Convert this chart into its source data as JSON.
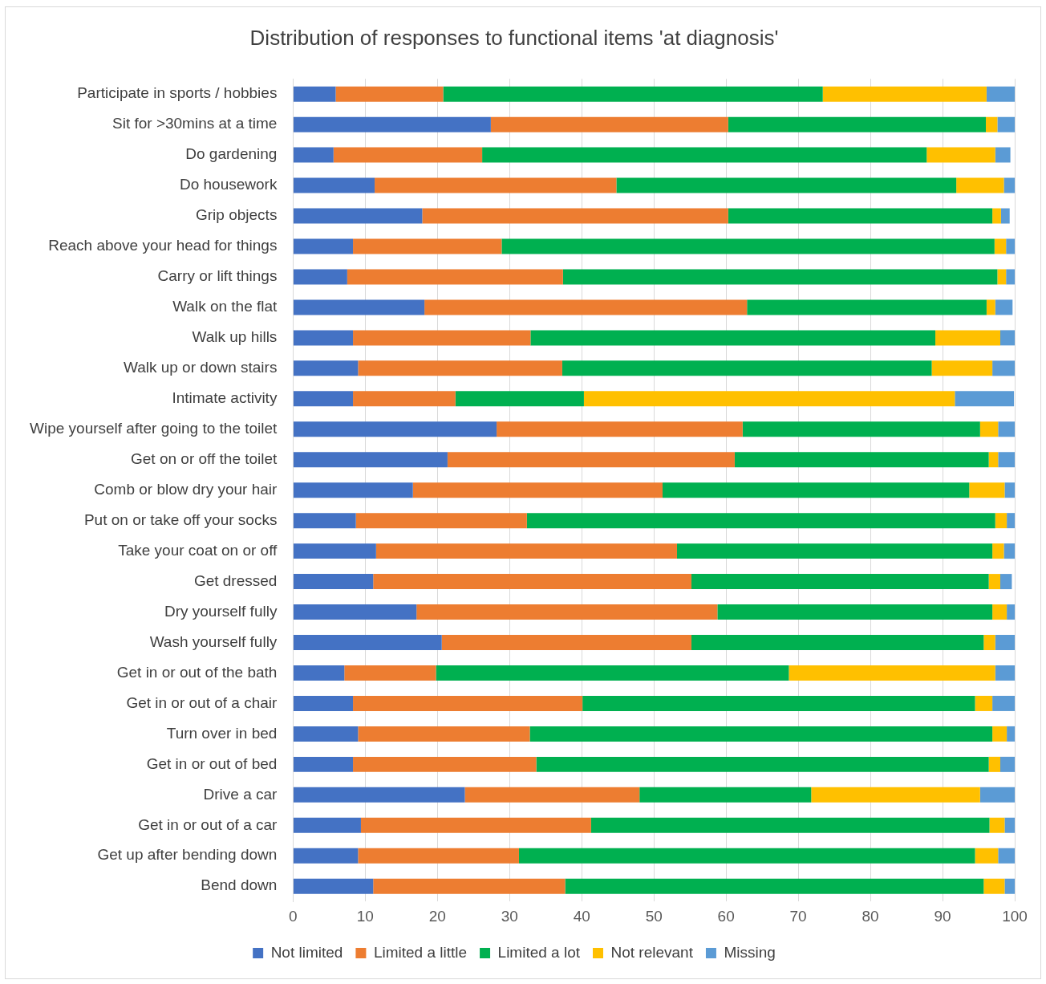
{
  "chart_data": {
    "type": "bar",
    "orientation": "horizontal",
    "stacked": true,
    "title": "Distribution of responses to functional items 'at diagnosis'",
    "categories": [
      "Participate in sports / hobbies",
      "Sit for >30mins at a time",
      "Do gardening",
      "Do housework",
      "Grip objects",
      "Reach above your head for things",
      "Carry or lift things",
      "Walk on the flat",
      "Walk up hills",
      "Walk up or down stairs",
      "Intimate activity",
      "Wipe yourself after going to the toilet",
      "Get on or off the toilet",
      "Comb or blow dry your hair",
      "Put on or take off your socks",
      "Take your coat on or off",
      "Get dressed",
      "Dry yourself fully",
      "Wash yourself fully",
      "Get in or out of the bath",
      "Get in or out of a chair",
      "Turn over in bed",
      "Get in or out of bed",
      "Drive a car",
      "Get in or out of a car",
      "Get up after bending down",
      "Bend down"
    ],
    "series": [
      {
        "name": "Not limited",
        "color": "#4472c4",
        "values": [
          5.9,
          27.4,
          5.6,
          11.3,
          17.9,
          8.3,
          7.5,
          18.2,
          8.3,
          9.0,
          8.3,
          28.2,
          21.4,
          16.6,
          8.7,
          11.5,
          11.1,
          17.1,
          20.6,
          7.1,
          8.3,
          9.0,
          8.3,
          23.8,
          9.4,
          9.0,
          11.1
        ]
      },
      {
        "name": "Limited a little",
        "color": "#ed7d31",
        "values": [
          14.9,
          32.9,
          20.6,
          33.5,
          42.4,
          20.6,
          29.9,
          44.7,
          24.6,
          28.3,
          14.2,
          34.1,
          39.8,
          34.6,
          23.7,
          41.7,
          44.1,
          41.7,
          34.6,
          12.7,
          31.8,
          23.8,
          25.4,
          24.2,
          31.9,
          22.3,
          26.6
        ]
      },
      {
        "name": "Limited a lot",
        "color": "#00b050",
        "values": [
          52.6,
          35.7,
          61.6,
          47.1,
          36.6,
          68.3,
          60.2,
          33.2,
          56.1,
          51.2,
          17.8,
          32.9,
          35.2,
          42.5,
          64.9,
          43.7,
          41.2,
          38.1,
          40.5,
          48.9,
          54.4,
          64.1,
          62.7,
          23.8,
          55.2,
          63.2,
          58.0
        ]
      },
      {
        "name": "Not relevant",
        "color": "#ffc000",
        "values": [
          22.7,
          1.6,
          9.5,
          6.6,
          1.2,
          1.6,
          1.2,
          1.2,
          9.0,
          8.4,
          51.4,
          2.5,
          1.3,
          4.9,
          1.6,
          1.6,
          1.6,
          2.0,
          1.6,
          28.6,
          2.4,
          2.0,
          1.6,
          23.4,
          2.1,
          3.2,
          2.9
        ]
      },
      {
        "name": "Missing",
        "color": "#5b9bd5",
        "values": [
          3.9,
          2.4,
          2.1,
          1.5,
          1.2,
          1.2,
          1.2,
          2.4,
          2.0,
          3.1,
          8.2,
          2.3,
          2.3,
          1.4,
          1.1,
          1.5,
          1.6,
          1.1,
          2.7,
          2.7,
          3.1,
          1.1,
          2.0,
          4.8,
          1.4,
          2.3,
          1.4
        ]
      }
    ],
    "xlim": [
      0,
      100
    ],
    "xticks": [
      0,
      10,
      20,
      30,
      40,
      50,
      60,
      70,
      80,
      90,
      100
    ],
    "grid": "x",
    "legend": "bottom"
  }
}
